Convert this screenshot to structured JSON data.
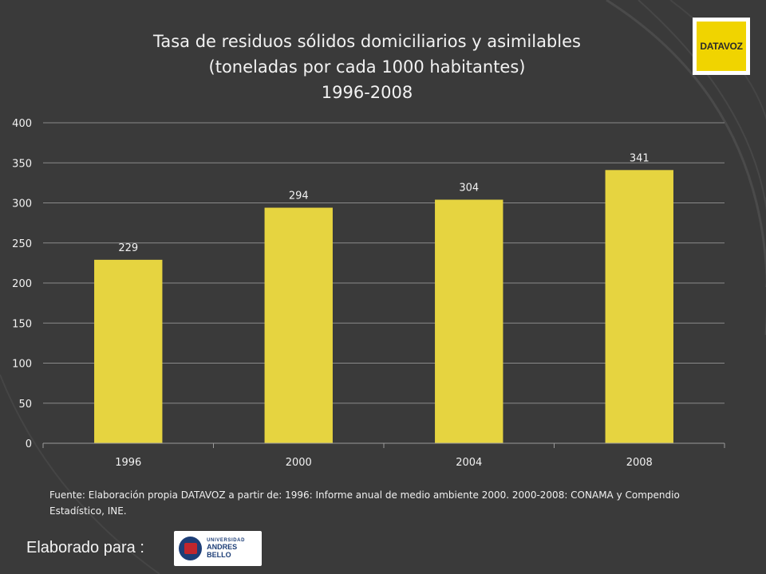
{
  "colors": {
    "background": "#3a3a3a",
    "bar": "#e6d440",
    "text": "#f2f2f2",
    "gridline": "#8a8a8a"
  },
  "chart_data": {
    "type": "bar",
    "title": "Tasa de residuos sólidos domiciliarios y asimilables",
    "subtitle": "(toneladas por cada 1000 habitantes)",
    "period": "1996-2008",
    "categories": [
      "1996",
      "2000",
      "2004",
      "2008"
    ],
    "values": [
      229,
      294,
      304,
      341
    ],
    "data_labels": [
      "229",
      "294",
      "304",
      "341"
    ],
    "ylim": [
      0,
      400
    ],
    "yticks": [
      0,
      50,
      100,
      150,
      200,
      250,
      300,
      350,
      400
    ],
    "grid": true,
    "legend": "none",
    "xlabel": "",
    "ylabel": ""
  },
  "source_note": "Fuente: Elaboración propia DATAVOZ a partir de: 1996: Informe anual de medio ambiente 2000.  2000-2008: CONAMA y Compendio Estadístico, INE.",
  "footer": {
    "label": "Elaborado para :"
  },
  "logos": {
    "datavoz": {
      "text": "DATAVOZ",
      "icon": "datavoz-logo"
    },
    "university": {
      "line1": "UNIVERSIDAD",
      "line2": "ANDRES BELLO",
      "icon": "universidad-andres-bello-logo"
    }
  }
}
